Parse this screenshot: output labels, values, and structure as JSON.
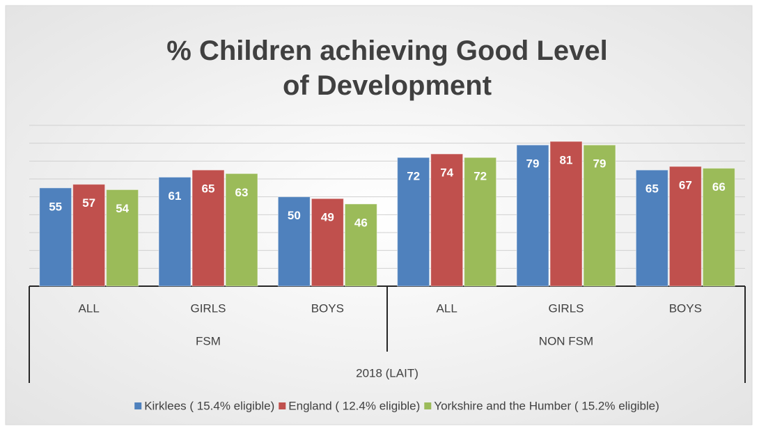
{
  "chart_data": {
    "type": "bar",
    "title": "% Children achieving Good Level of Development",
    "super_group": "2018 (LAIT)",
    "groups": [
      {
        "name": "FSM",
        "categories": [
          "ALL",
          "GIRLS",
          "BOYS"
        ]
      },
      {
        "name": "NON FSM",
        "categories": [
          "ALL",
          "GIRLS",
          "BOYS"
        ]
      }
    ],
    "series": [
      {
        "name": "Kirklees ( 15.4% eligible)",
        "color": "#4f81bd",
        "values": [
          55,
          61,
          50,
          72,
          79,
          65
        ]
      },
      {
        "name": "England ( 12.4% eligible)",
        "color": "#c0504d",
        "values": [
          57,
          65,
          49,
          74,
          81,
          67
        ]
      },
      {
        "name": "Yorkshire and the Humber ( 15.2% eligible)",
        "color": "#9bbb59",
        "values": [
          54,
          63,
          46,
          72,
          79,
          66
        ]
      }
    ],
    "ylim": [
      0,
      90
    ],
    "yticks": [
      0,
      10,
      20,
      30,
      40,
      50,
      60,
      70,
      80,
      90
    ],
    "grid": true,
    "legend": "bottom"
  }
}
